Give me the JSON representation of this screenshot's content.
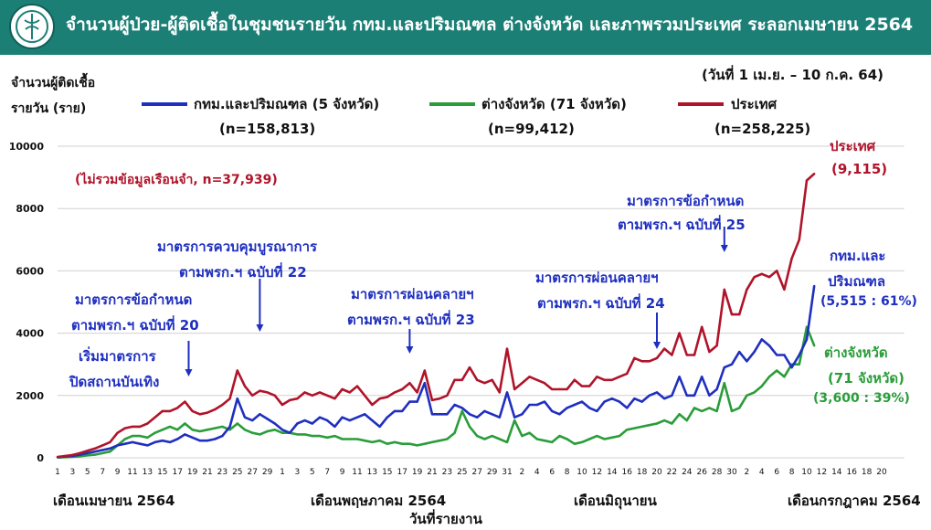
{
  "header": {
    "title": "จำนวนผู้ป่วย-ผู้ติดเชื้อในชุมชนรายวัน กทม.และปริมณฑล ต่างจังหวัด และภาพรวมประเทศ ระลอกเมษายน 2564"
  },
  "date_range": "(วันที่ 1 เม.ย. – 10 ก.ค. 64)",
  "chart_data": {
    "type": "line",
    "title": "จำนวนผู้ป่วย-ผู้ติดเชื้อในชุมชนรายวัน กทม.และปริมณฑล ต่างจังหวัด และภาพรวมประเทศ ระลอกเมษายน 2564",
    "subtitle": "(วันที่ 1 เม.ย. – 10 ก.ค. 64)",
    "ylabel_line1": "จำนวนผู้ติดเชื้อ",
    "ylabel_line2": "รายวัน (ราย)",
    "xlabel": "วันที่รายงาน",
    "ylim": [
      0,
      10000
    ],
    "yticks": [
      0,
      2000,
      4000,
      6000,
      8000,
      10000
    ],
    "grid": true,
    "legend_position": "top",
    "x_tick_labels": [
      "1",
      "3",
      "5",
      "7",
      "9",
      "11",
      "13",
      "15",
      "17",
      "19",
      "21",
      "23",
      "25",
      "27",
      "29",
      "1",
      "3",
      "5",
      "7",
      "9",
      "11",
      "13",
      "15",
      "17",
      "19",
      "21",
      "23",
      "25",
      "27",
      "29",
      "31",
      "2",
      "4",
      "6",
      "8",
      "10",
      "12",
      "14",
      "16",
      "18",
      "20",
      "22",
      "24",
      "26",
      "28",
      "30",
      "2",
      "4",
      "6",
      "8",
      "10",
      "12",
      "14",
      "16",
      "18",
      "20"
    ],
    "months": [
      {
        "label": "เดือนเมษายน 2564",
        "start_index": 0
      },
      {
        "label": "เดือนพฤษภาคม 2564",
        "start_index": 30
      },
      {
        "label": "เดือนมิถุนายน",
        "start_index": 61
      },
      {
        "label": "เดือนกรกฎาคม 2564",
        "start_index": 91
      }
    ],
    "series": [
      {
        "name": "กทม.และปริมณฑล (5 จังหวัด)",
        "n_label": "(n=158,813)",
        "color": "#1f2fbf",
        "values": [
          20,
          40,
          60,
          100,
          150,
          200,
          250,
          300,
          400,
          450,
          500,
          450,
          400,
          500,
          550,
          500,
          600,
          750,
          650,
          550,
          550,
          600,
          700,
          1000,
          1900,
          1300,
          1200,
          1400,
          1250,
          1100,
          900,
          800,
          1100,
          1200,
          1100,
          1300,
          1200,
          1000,
          1300,
          1200,
          1300,
          1400,
          1200,
          1000,
          1300,
          1500,
          1500,
          1800,
          1800,
          2400,
          1400,
          1400,
          1400,
          1700,
          1600,
          1400,
          1300,
          1500,
          1400,
          1300,
          2100,
          1300,
          1400,
          1700,
          1700,
          1800,
          1500,
          1400,
          1600,
          1700,
          1800,
          1600,
          1500,
          1800,
          1900,
          1800,
          1600,
          1900,
          1800,
          2000,
          2100,
          1900,
          2000,
          2600,
          2000,
          2000,
          2600,
          2000,
          2200,
          2900,
          3000,
          3400,
          3100,
          3400,
          3800,
          3600,
          3300,
          3300,
          2900,
          3300,
          3800,
          5515
        ]
      },
      {
        "name": "ต่างจังหวัด (71 จังหวัด)",
        "n_label": "(n=99,412)",
        "color": "#2a9d3a",
        "values": [
          10,
          20,
          30,
          50,
          80,
          100,
          150,
          200,
          400,
          600,
          700,
          700,
          650,
          800,
          900,
          1000,
          900,
          1100,
          900,
          850,
          900,
          950,
          1000,
          900,
          1100,
          900,
          800,
          750,
          850,
          900,
          800,
          800,
          750,
          750,
          700,
          700,
          650,
          700,
          600,
          600,
          600,
          550,
          500,
          550,
          450,
          500,
          450,
          450,
          400,
          450,
          500,
          550,
          600,
          800,
          1500,
          1000,
          700,
          600,
          700,
          600,
          500,
          1200,
          700,
          800,
          600,
          550,
          500,
          700,
          600,
          450,
          500,
          600,
          700,
          600,
          650,
          700,
          900,
          950,
          1000,
          1050,
          1100,
          1200,
          1100,
          1400,
          1200,
          1600,
          1500,
          1600,
          1500,
          2400,
          1500,
          1600,
          2000,
          2100,
          2300,
          2600,
          2800,
          2600,
          3000,
          3000,
          4200,
          3600
        ]
      },
      {
        "name": "ประเทศ",
        "n_label": "(n=258,225)",
        "color": "#b0142a",
        "values": [
          30,
          60,
          90,
          150,
          230,
          300,
          400,
          500,
          800,
          950,
          1000,
          1000,
          1100,
          1300,
          1500,
          1500,
          1600,
          1800,
          1500,
          1400,
          1450,
          1550,
          1700,
          1900,
          2800,
          2300,
          2000,
          2150,
          2100,
          2000,
          1700,
          1850,
          1900,
          2100,
          2000,
          2100,
          2000,
          1900,
          2200,
          2100,
          2300,
          2000,
          1700,
          1900,
          1950,
          2100,
          2200,
          2400,
          2100,
          2800,
          1850,
          1900,
          2000,
          2500,
          2500,
          2900,
          2500,
          2400,
          2500,
          2100,
          3500,
          2200,
          2400,
          2600,
          2500,
          2400,
          2200,
          2200,
          2200,
          2500,
          2300,
          2300,
          2600,
          2500,
          2500,
          2600,
          2700,
          3200,
          3100,
          3100,
          3200,
          3500,
          3300,
          4000,
          3300,
          3300,
          4200,
          3400,
          3600,
          5400,
          4600,
          4600,
          5400,
          5800,
          5900,
          5800,
          6000,
          5400,
          6400,
          7000,
          8900,
          9115
        ]
      }
    ],
    "annotations": [
      {
        "key": "prison_note",
        "text": "(ไม่รวมข้อมูลเรือนจำ, n=37,939)"
      },
      {
        "key": "end_country",
        "text": "ประเทศ",
        "text2": "(9,115)"
      },
      {
        "key": "end_bkk",
        "text": "กทม.และ",
        "text2": "ปริมณฑล",
        "text3": "(5,515 : 61%)"
      },
      {
        "key": "end_prov",
        "text": "ต่างจังหวัด",
        "text2": "(71 จังหวัด)",
        "text3": "(3,600 : 39%)"
      },
      {
        "key": "m_entertain",
        "text": "เริ่มมาตรการ",
        "text2": "ปิดสถานบันเทิง"
      },
      {
        "key": "m_20",
        "text": "มาตรการข้อกำหนด",
        "text2": "ตามพรก.ฯ ฉบับที่ 20"
      },
      {
        "key": "m_22",
        "text": "มาตรการควบคุมบูรณาการ",
        "text2": "ตามพรก.ฯ ฉบับที่ 22"
      },
      {
        "key": "m_23",
        "text": "มาตรการผ่อนคลายฯ",
        "text2": "ตามพรก.ฯ ฉบับที่ 23"
      },
      {
        "key": "m_24",
        "text": "มาตรการผ่อนคลายฯ",
        "text2": "ตามพรก.ฯ ฉบับที่ 24"
      },
      {
        "key": "m_25",
        "text": "มาตรการข้อกำหนด",
        "text2": "ตามพรก.ฯ ฉบับที่ 25"
      }
    ]
  }
}
